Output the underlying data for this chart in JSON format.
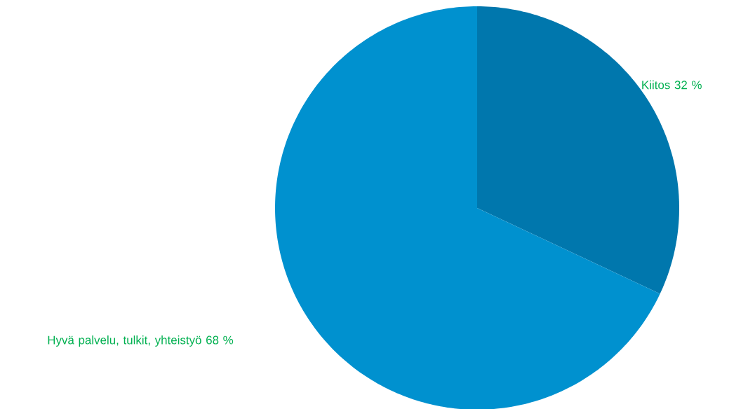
{
  "chart_data": {
    "type": "pie",
    "categories": [
      "Kiitos",
      "Hyvä palvelu, tulkit, yhteistyö"
    ],
    "values": [
      32,
      68
    ],
    "value_labels": [
      "32 %",
      "68 %"
    ],
    "colors": [
      "#0077ad",
      "#0091cf"
    ]
  }
}
